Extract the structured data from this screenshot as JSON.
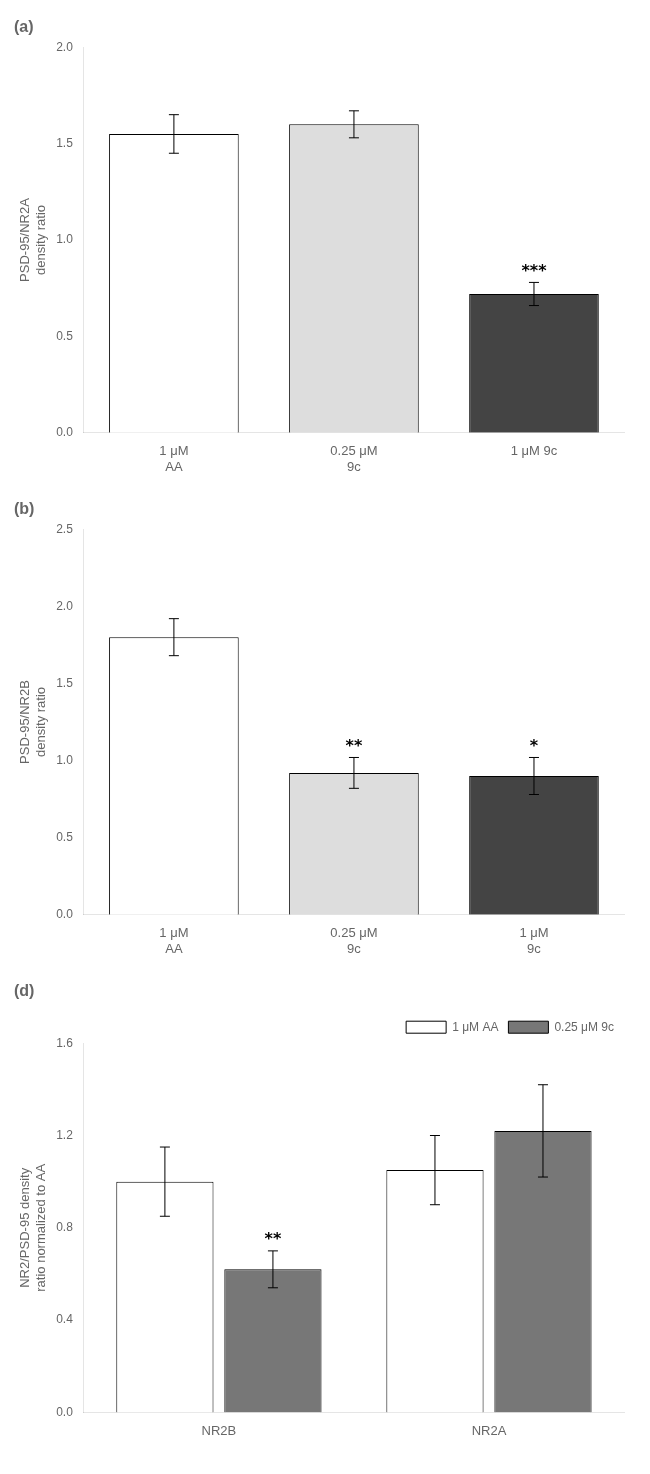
{
  "chart_data": [
    {
      "type": "bar",
      "title": "(a)",
      "categories": [
        "1 μM\nAA",
        "0.25 μM\n9c",
        "1 μM 9c"
      ],
      "values": [
        1.55,
        1.6,
        0.72
      ],
      "errors": [
        0.1,
        0.07,
        0.06
      ],
      "colors": [
        "#ffffff",
        "#dddddd",
        "#444444"
      ],
      "annotations": [
        {
          "category": "1 μM 9c",
          "text": "***"
        }
      ],
      "ylabel": "PSD-95/NR2A\ndensity ratio",
      "ylim": [
        0,
        2.0
      ],
      "yticks": [
        {
          "value": 0.0,
          "label": "0.0"
        },
        0.5,
        {
          "value": 1.0,
          "label": "1.0"
        },
        1.5,
        {
          "value": 2.0,
          "label": "2.0"
        }
      ],
      "grid": false
    },
    {
      "type": "bar",
      "title": "(b)",
      "categories": [
        "1 μM\nAA",
        "0.25 μM\n9c",
        "1 μM\n9c"
      ],
      "values": [
        1.8,
        0.92,
        0.9
      ],
      "errors": [
        0.12,
        0.1,
        0.12
      ],
      "colors": [
        "#ffffff",
        "#dddddd",
        "#444444"
      ],
      "annotations": [
        {
          "category": "0.25 μM\n9c",
          "text": "**"
        },
        {
          "category": "1 μM\n9c",
          "text": "*"
        }
      ],
      "ylabel": "PSD-95/NR2B\ndensity ratio",
      "ylim": [
        0,
        2.5
      ],
      "yticks": [
        {
          "value": 0.0,
          "label": "0.0"
        },
        0.5,
        {
          "value": 1.0,
          "label": "1.0"
        },
        1.5,
        {
          "value": 2.0,
          "label": "2.0"
        },
        2.5
      ],
      "grid": false
    },
    {
      "type": "bar",
      "title": "(d)",
      "categories": [
        "NR2B",
        "NR2A"
      ],
      "series": [
        {
          "name": "1 μM AA",
          "color": "#ffffff",
          "values": [
            1.0,
            1.05
          ],
          "errors": [
            0.15,
            0.15
          ]
        },
        {
          "name": "0.25 μM 9c",
          "color": "#777777",
          "values": [
            0.62,
            1.22
          ],
          "errors": [
            0.08,
            0.2
          ]
        }
      ],
      "annotations": [
        {
          "category": "NR2B",
          "series": "0.25 μM 9c",
          "text": "**"
        }
      ],
      "ylabel": "NR2/PSD-95 density\nratio normalized to AA",
      "ylim": [
        0,
        1.6
      ],
      "yticks": [
        {
          "value": 0.0,
          "label": "0.0"
        },
        0.4,
        0.8,
        1.2,
        1.6
      ],
      "legend": "upper right",
      "grid": false
    }
  ]
}
